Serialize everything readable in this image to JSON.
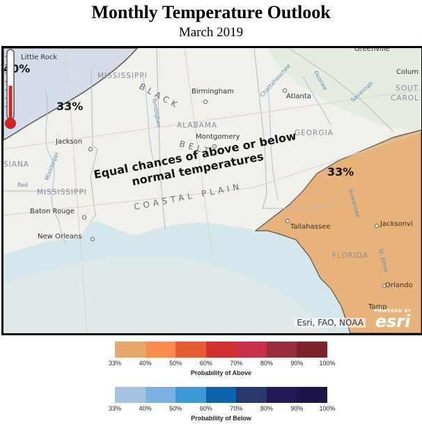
{
  "header": {
    "title": "Monthly Temperature Outlook",
    "subtitle": "March 2019"
  },
  "map": {
    "cities": {
      "little_rock": "Little Rock",
      "greenville": "Greenville",
      "columbia": "Colum",
      "birmingham": "Birmingham",
      "atlanta": "Atlanta",
      "jackson": "Jackson",
      "montgomery": "Montgomery",
      "baton_rouge": "Baton Rouge",
      "new_orleans": "New Orleans",
      "tallahassee": "Tallahassee",
      "jacksonville": "Jacksonvi",
      "orlando": "Orlando",
      "tampa": "Tamp"
    },
    "states": {
      "mississippi_north": "MISSISSIPPI",
      "mississippi_south": "MISSISSIPPI",
      "alabama": "ALABAMA",
      "georgia": "GEORGIA",
      "louisiana": "SIANA",
      "south_carolina_1": "SOUT",
      "south_carolina_2": "CAROL",
      "florida": "FLORIDA"
    },
    "features": {
      "black_belt_1": "BLACK",
      "black_belt_2": "BELT",
      "coastal_plain": "COASTAL PLAIN",
      "chattahoochee": "Chattahoochee",
      "oconee": "Oconee",
      "savannah": "Savannah",
      "tombigbee": "Tombigbee",
      "mississippi_river": "Mississippi",
      "red": "Red",
      "suwannee": "Suwannee",
      "st_johns": "St. Johns"
    },
    "probabilities": {
      "below_40": "40%",
      "below_33": "33%",
      "above_33": "33%"
    },
    "equal_chances_line1": "Equal chances of above or below",
    "equal_chances_line2": "normal temperatures",
    "attribution": "Esri, FAO, NOAA",
    "esri_powered": "POWERED BY",
    "esri_name": "esri"
  },
  "legend_above": {
    "caption": "Probability of Above",
    "ticks": [
      "33%",
      "40%",
      "50%",
      "60%",
      "70%",
      "80%",
      "90%",
      "100%"
    ],
    "colors": [
      "#e8a86b",
      "#fb8c4f",
      "#e55c33",
      "#d13030",
      "#c92f48",
      "#98303c",
      "#7c2228"
    ]
  },
  "legend_below": {
    "caption": "Probability of Below",
    "ticks": [
      "33%",
      "40%",
      "50%",
      "60%",
      "70%",
      "80%",
      "90%",
      "100%"
    ],
    "colors": [
      "#a6c3e1",
      "#7ab2e3",
      "#3d9ad8",
      "#0d63ad",
      "#25396f",
      "#211a56",
      "#1c1648"
    ]
  }
}
